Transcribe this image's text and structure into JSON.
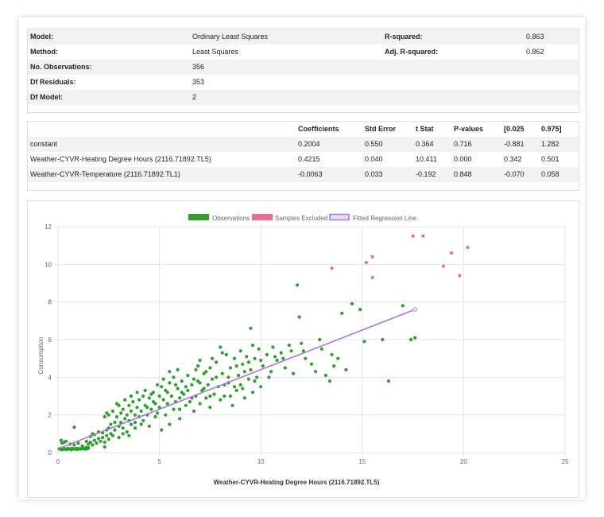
{
  "summary": {
    "rows": [
      {
        "label": "Model:",
        "value": "Ordinary Least Squares",
        "label2": "R-squared:",
        "value2": "0.863"
      },
      {
        "label": "Method:",
        "value": "Least Squares",
        "label2": "Adj. R-squared:",
        "value2": "0.862"
      },
      {
        "label": "No. Observations:",
        "value": "356",
        "label2": "",
        "value2": ""
      },
      {
        "label": "Df Residuals:",
        "value": "353",
        "label2": "",
        "value2": ""
      },
      {
        "label": "Df Model:",
        "value": "2",
        "label2": "",
        "value2": ""
      }
    ]
  },
  "coefficients": {
    "headers": [
      "Coefficients",
      "Std Error",
      "t Stat",
      "P-values",
      "[0.025",
      "0.975]"
    ],
    "rows": [
      {
        "name": "constant",
        "values": [
          "0.2004",
          "0.550",
          "0.364",
          "0.716",
          "-0.881",
          "1.282"
        ]
      },
      {
        "name": "Weather-CYVR-Heating Degree Hours (2116.71892.TL5)",
        "values": [
          "0.4215",
          "0.040",
          "10.411",
          "0.000",
          "0.342",
          "0.501"
        ]
      },
      {
        "name": "Weather-CYVR-Temperature (2116.71892.TL1)",
        "values": [
          "-0.0063",
          "0.033",
          "-0.192",
          "0.848",
          "-0.070",
          "0.058"
        ]
      }
    ]
  },
  "chart_data": {
    "type": "scatter",
    "xlabel": "Weather-CYVR-Heating Degree Hours (2116.71892.TL5)",
    "ylabel": "Consumption",
    "xlim": [
      0,
      25
    ],
    "ylim": [
      0,
      12
    ],
    "xticks": [
      "0",
      "5",
      "10",
      "15",
      "20",
      "25"
    ],
    "yticks": [
      "0",
      "2",
      "4",
      "6",
      "8",
      "10",
      "12"
    ],
    "grid": true,
    "legend_position": "top-center",
    "colors": {
      "observations": "#2ca02c",
      "excluded": "#ef6b8e",
      "regression": "#a675e6"
    },
    "series": [
      {
        "name": "Observations",
        "style": "points",
        "points": [
          [
            0.05,
            0.2
          ],
          [
            0.1,
            0.18
          ],
          [
            0.15,
            0.22
          ],
          [
            0.2,
            0.15
          ],
          [
            0.25,
            0.2
          ],
          [
            0.3,
            0.18
          ],
          [
            0.35,
            0.2
          ],
          [
            0.4,
            0.16
          ],
          [
            0.45,
            0.2
          ],
          [
            0.5,
            0.22
          ],
          [
            0.55,
            0.18
          ],
          [
            0.6,
            0.2
          ],
          [
            0.65,
            0.15
          ],
          [
            0.7,
            0.22
          ],
          [
            0.75,
            0.2
          ],
          [
            0.8,
            0.18
          ],
          [
            0.85,
            0.2
          ],
          [
            0.9,
            0.22
          ],
          [
            0.95,
            0.16
          ],
          [
            1.0,
            0.2
          ],
          [
            1.05,
            0.22
          ],
          [
            1.1,
            0.18
          ],
          [
            1.15,
            0.2
          ],
          [
            1.2,
            0.25
          ],
          [
            1.25,
            0.2
          ],
          [
            1.3,
            0.22
          ],
          [
            1.35,
            0.18
          ],
          [
            1.4,
            0.28
          ],
          [
            1.45,
            0.2
          ],
          [
            1.5,
            0.25
          ],
          [
            0.2,
            0.5
          ],
          [
            0.3,
            0.55
          ],
          [
            0.4,
            0.6
          ],
          [
            0.15,
            0.65
          ],
          [
            0.6,
            0.45
          ],
          [
            0.8,
            0.4
          ],
          [
            1.0,
            0.5
          ],
          [
            1.2,
            0.35
          ],
          [
            1.4,
            0.6
          ],
          [
            1.5,
            0.45
          ],
          [
            1.6,
            0.55
          ],
          [
            1.7,
            0.4
          ],
          [
            1.8,
            0.65
          ],
          [
            1.9,
            0.5
          ],
          [
            2.0,
            0.75
          ],
          [
            2.1,
            0.6
          ],
          [
            2.2,
            0.8
          ],
          [
            2.3,
            0.55
          ],
          [
            2.4,
            0.9
          ],
          [
            2.5,
            0.7
          ],
          [
            0.8,
            1.35
          ],
          [
            1.6,
            0.85
          ],
          [
            1.7,
            1.0
          ],
          [
            1.8,
            0.95
          ],
          [
            2.0,
            1.1
          ],
          [
            2.2,
            1.05
          ],
          [
            2.3,
            0.3
          ],
          [
            2.4,
            1.2
          ],
          [
            2.5,
            1.3
          ],
          [
            2.6,
            1.0
          ],
          [
            2.6,
            1.5
          ],
          [
            2.7,
            0.9
          ],
          [
            2.8,
            1.6
          ],
          [
            2.8,
            1.2
          ],
          [
            2.9,
            1.9
          ],
          [
            3.0,
            1.4
          ],
          [
            3.0,
            0.8
          ],
          [
            3.1,
            2.1
          ],
          [
            3.1,
            1.6
          ],
          [
            3.2,
            1.3
          ],
          [
            2.3,
            1.9
          ],
          [
            2.4,
            2.1
          ],
          [
            2.5,
            2.0
          ],
          [
            3.2,
            2.3
          ],
          [
            3.3,
            1.8
          ],
          [
            3.4,
            2.0
          ],
          [
            3.4,
            1.1
          ],
          [
            3.5,
            2.5
          ],
          [
            3.5,
            1.7
          ],
          [
            3.6,
            2.2
          ],
          [
            3.6,
            1.5
          ],
          [
            3.7,
            2.7
          ],
          [
            3.8,
            2.0
          ],
          [
            3.8,
            1.3
          ],
          [
            3.9,
            2.4
          ],
          [
            4.0,
            2.8
          ],
          [
            4.0,
            1.9
          ],
          [
            4.1,
            2.2
          ],
          [
            4.2,
            3.0
          ],
          [
            4.2,
            1.7
          ],
          [
            4.3,
            2.5
          ],
          [
            4.4,
            2.0
          ],
          [
            4.5,
            2.9
          ],
          [
            4.5,
            1.4
          ],
          [
            4.6,
            2.3
          ],
          [
            4.7,
            3.2
          ],
          [
            4.8,
            2.6
          ],
          [
            4.8,
            1.9
          ],
          [
            4.9,
            2.1
          ],
          [
            5.0,
            3.0
          ],
          [
            5.0,
            2.4
          ],
          [
            5.1,
            3.5
          ],
          [
            5.1,
            1.2
          ],
          [
            5.2,
            2.8
          ],
          [
            5.3,
            3.3
          ],
          [
            5.3,
            2.0
          ],
          [
            5.4,
            2.6
          ],
          [
            5.5,
            3.7
          ],
          [
            5.5,
            1.5
          ],
          [
            5.6,
            3.0
          ],
          [
            5.7,
            2.3
          ],
          [
            5.7,
            4.0
          ],
          [
            5.8,
            2.7
          ],
          [
            5.9,
            3.4
          ],
          [
            6.0,
            2.9
          ],
          [
            6.0,
            1.8
          ],
          [
            6.1,
            3.8
          ],
          [
            6.2,
            3.1
          ],
          [
            6.3,
            2.5
          ],
          [
            6.4,
            4.1
          ],
          [
            6.4,
            3.3
          ],
          [
            6.5,
            2.7
          ],
          [
            6.6,
            3.6
          ],
          [
            6.7,
            2.2
          ],
          [
            6.8,
            4.4
          ],
          [
            6.8,
            3.0
          ],
          [
            6.9,
            3.8
          ],
          [
            7.0,
            2.6
          ],
          [
            7.0,
            4.9
          ],
          [
            7.1,
            3.3
          ],
          [
            7.2,
            4.2
          ],
          [
            7.3,
            2.9
          ],
          [
            7.4,
            3.6
          ],
          [
            7.5,
            4.5
          ],
          [
            7.5,
            2.4
          ],
          [
            7.6,
            3.9
          ],
          [
            7.7,
            3.1
          ],
          [
            7.8,
            4.8
          ],
          [
            7.9,
            3.5
          ],
          [
            8.0,
            5.6
          ],
          [
            8.0,
            2.8
          ],
          [
            8.1,
            4.2
          ],
          [
            8.2,
            3.0
          ],
          [
            8.3,
            5.2
          ],
          [
            8.4,
            3.7
          ],
          [
            8.5,
            4.5
          ],
          [
            8.6,
            2.5
          ],
          [
            8.7,
            5.0
          ],
          [
            8.8,
            3.3
          ],
          [
            8.9,
            4.1
          ],
          [
            9.0,
            5.4
          ],
          [
            9.0,
            3.6
          ],
          [
            9.1,
            4.7
          ],
          [
            9.2,
            2.9
          ],
          [
            9.3,
            5.1
          ],
          [
            9.4,
            3.9
          ],
          [
            9.5,
            4.4
          ],
          [
            9.5,
            6.6
          ],
          [
            9.6,
            3.2
          ],
          [
            9.7,
            5.0
          ],
          [
            9.8,
            4.0
          ],
          [
            9.9,
            5.5
          ],
          [
            10.0,
            3.5
          ],
          [
            10.1,
            4.6
          ],
          [
            10.3,
            5.2
          ],
          [
            10.5,
            4.3
          ],
          [
            10.6,
            5.6
          ],
          [
            10.8,
            4.9
          ],
          [
            11.0,
            5.3
          ],
          [
            11.2,
            4.5
          ],
          [
            11.4,
            5.7
          ],
          [
            11.6,
            4.2
          ],
          [
            11.8,
            8.9
          ],
          [
            11.9,
            7.2
          ],
          [
            12.0,
            5.8
          ],
          [
            12.2,
            5.0
          ],
          [
            12.5,
            4.7
          ],
          [
            12.7,
            4.3
          ],
          [
            13.0,
            5.5
          ],
          [
            13.2,
            4.1
          ],
          [
            13.5,
            5.2
          ],
          [
            13.4,
            3.8
          ],
          [
            13.6,
            4.6
          ],
          [
            13.8,
            5.0
          ],
          [
            14.0,
            7.4
          ],
          [
            14.2,
            4.4
          ],
          [
            14.5,
            7.9
          ],
          [
            14.9,
            7.6
          ],
          [
            15.1,
            5.9
          ],
          [
            16.0,
            6.0
          ],
          [
            16.3,
            3.8
          ],
          [
            17.0,
            7.8
          ],
          [
            17.4,
            6.0
          ],
          [
            17.6,
            6.1
          ],
          [
            6.0,
            2.3
          ],
          [
            6.3,
            3.5
          ],
          [
            6.6,
            2.9
          ],
          [
            6.9,
            4.6
          ],
          [
            7.2,
            3.4
          ],
          [
            7.5,
            3.0
          ],
          [
            7.8,
            4.0
          ],
          [
            8.2,
            3.6
          ],
          [
            8.5,
            3.0
          ],
          [
            8.8,
            4.6
          ],
          [
            9.1,
            3.4
          ],
          [
            9.4,
            4.8
          ],
          [
            9.7,
            3.8
          ],
          [
            10.0,
            4.9
          ],
          [
            10.4,
            4.0
          ],
          [
            10.7,
            5.1
          ],
          [
            11.1,
            5.0
          ],
          [
            11.5,
            5.4
          ],
          [
            12.1,
            5.4
          ],
          [
            12.9,
            6.0
          ],
          [
            3.0,
            2.5
          ],
          [
            3.3,
            2.8
          ],
          [
            3.6,
            3.0
          ],
          [
            3.9,
            3.2
          ],
          [
            4.3,
            3.3
          ],
          [
            4.6,
            3.1
          ],
          [
            4.9,
            3.6
          ],
          [
            5.2,
            3.9
          ],
          [
            5.5,
            4.3
          ],
          [
            5.8,
            3.6
          ],
          [
            2.7,
            2.2
          ],
          [
            2.9,
            2.6
          ],
          [
            3.2,
            1.0
          ],
          [
            3.5,
            0.9
          ],
          [
            3.8,
            1.6
          ],
          [
            4.1,
            1.5
          ],
          [
            4.4,
            2.4
          ],
          [
            4.7,
            2.7
          ],
          [
            5.4,
            3.2
          ],
          [
            5.9,
            4.4
          ],
          [
            6.1,
            3.2
          ],
          [
            6.7,
            3.9
          ],
          [
            7.0,
            3.7
          ],
          [
            7.3,
            4.3
          ],
          [
            7.6,
            5.0
          ],
          [
            8.1,
            5.3
          ],
          [
            8.4,
            4.0
          ],
          [
            8.7,
            3.5
          ],
          [
            9.2,
            4.3
          ],
          [
            9.6,
            5.7
          ]
        ]
      },
      {
        "name": "Samples Excluded",
        "style": "points",
        "points": [
          [
            13.5,
            9.8
          ],
          [
            15.2,
            10.1
          ],
          [
            15.5,
            10.4
          ],
          [
            15.5,
            9.3
          ],
          [
            17.5,
            11.5
          ],
          [
            18.0,
            11.5
          ],
          [
            19.0,
            9.9
          ],
          [
            19.4,
            10.6
          ],
          [
            19.8,
            9.4
          ],
          [
            20.2,
            10.9
          ]
        ]
      },
      {
        "name": "Fitted Regression Line",
        "style": "line",
        "points": [
          [
            0,
            0.2
          ],
          [
            17.6,
            7.6
          ]
        ]
      }
    ]
  }
}
